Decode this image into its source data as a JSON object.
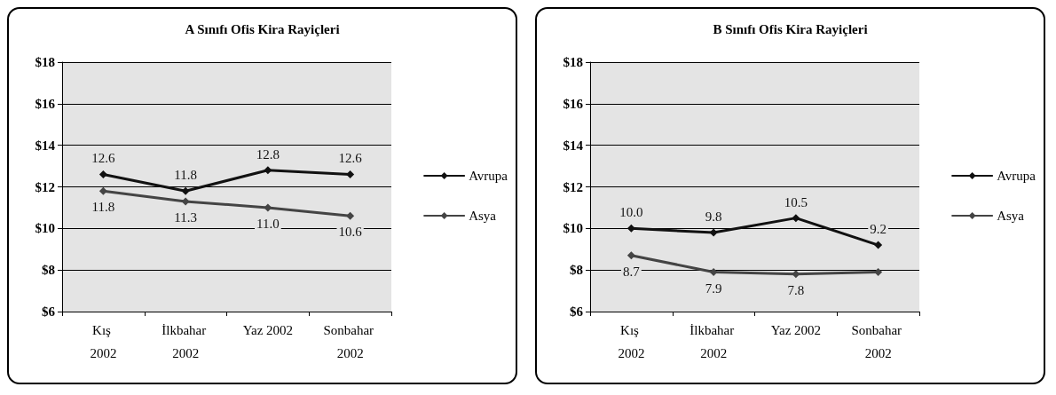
{
  "chart_data": [
    {
      "type": "line",
      "title": "A Sınıfı Ofis Kira Rayiçleri",
      "categories": [
        "Kış 2002",
        "İlkbahar 2002",
        "Yaz 2002",
        "Sonbahar 2002"
      ],
      "series": [
        {
          "name": "Avrupa",
          "color": "#111111",
          "values": [
            12.6,
            11.8,
            12.8,
            12.6
          ],
          "value_labels": [
            "12.6",
            "11.8",
            "12.8",
            "12.6"
          ]
        },
        {
          "name": "Asya",
          "color": "#444444",
          "values": [
            11.8,
            11.3,
            11.0,
            10.6
          ],
          "value_labels": [
            "11.8",
            "11.3",
            "11.0",
            "10.6"
          ]
        }
      ],
      "ylim": [
        6,
        18
      ],
      "yticks": [
        {
          "value": 6,
          "label": "$6"
        },
        {
          "value": 8,
          "label": "$8"
        },
        {
          "value": 10,
          "label": "$10"
        },
        {
          "value": 12,
          "label": "$12"
        },
        {
          "value": 14,
          "label": "$14"
        },
        {
          "value": 16,
          "label": "$16"
        },
        {
          "value": 18,
          "label": "$18"
        }
      ],
      "grid": "y",
      "legend": "right",
      "marker": "diamond"
    },
    {
      "type": "line",
      "title": "B Sınıfı Ofis Kira Rayiçleri",
      "categories": [
        "Kış 2002",
        "İlkbahar 2002",
        "Yaz 2002",
        "Sonbahar 2002"
      ],
      "series": [
        {
          "name": "Avrupa",
          "color": "#111111",
          "values": [
            10.0,
            9.8,
            10.5,
            9.2
          ],
          "value_labels": [
            "10.0",
            "9.8",
            "10.5",
            "9.2"
          ]
        },
        {
          "name": "Asya",
          "color": "#444444",
          "values": [
            8.7,
            7.9,
            7.8,
            7.9
          ],
          "value_labels": [
            "8.7",
            "7.9",
            "7.8",
            null
          ]
        }
      ],
      "ylim": [
        6,
        18
      ],
      "yticks": [
        {
          "value": 6,
          "label": "$6"
        },
        {
          "value": 8,
          "label": "$8"
        },
        {
          "value": 10,
          "label": "$10"
        },
        {
          "value": 12,
          "label": "$12"
        },
        {
          "value": 14,
          "label": "$14"
        },
        {
          "value": 16,
          "label": "$16"
        },
        {
          "value": 18,
          "label": "$18"
        }
      ],
      "grid": "y",
      "legend": "right",
      "marker": "diamond"
    }
  ]
}
